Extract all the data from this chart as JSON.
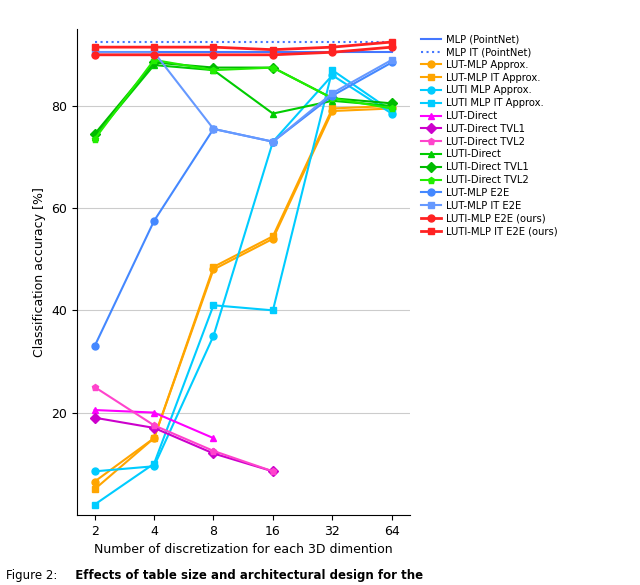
{
  "x_values": [
    2,
    4,
    8,
    16,
    32,
    64
  ],
  "x_label": "Number of discretization for each 3D dimention",
  "y_label": "Classification accuracy [%]",
  "ylim": [
    0,
    95
  ],
  "yticks": [
    20,
    40,
    60,
    80
  ],
  "series": {
    "MLP (PointNet)": {
      "color": "#4477ff",
      "linestyle": "-",
      "marker": null,
      "values": [
        90.5,
        90.5,
        90.5,
        90.5,
        90.5,
        90.5
      ],
      "linewidth": 1.5
    },
    "MLP IT (PointNet)": {
      "color": "#4477ff",
      "linestyle": ":",
      "marker": null,
      "values": [
        92.5,
        92.5,
        92.5,
        92.5,
        92.5,
        92.5
      ],
      "linewidth": 1.5
    },
    "LUT-MLP Approx.": {
      "color": "#ffa500",
      "linestyle": "-",
      "marker": "o",
      "values": [
        6.5,
        15.0,
        48.0,
        54.0,
        79.0,
        79.5
      ],
      "linewidth": 1.5
    },
    "LUT-MLP IT Approx.": {
      "color": "#ffa500",
      "linestyle": "-",
      "marker": "s",
      "values": [
        5.0,
        15.0,
        48.5,
        54.5,
        79.5,
        80.0
      ],
      "linewidth": 1.5
    },
    "LUTI MLP Approx.": {
      "color": "#00ccff",
      "linestyle": "-",
      "marker": "o",
      "values": [
        8.5,
        9.5,
        35.0,
        73.0,
        86.0,
        78.5
      ],
      "linewidth": 1.5
    },
    "LUTI MLP IT Approx.": {
      "color": "#00ccff",
      "linestyle": "-",
      "marker": "s",
      "values": [
        2.0,
        10.0,
        41.0,
        40.0,
        87.0,
        79.0
      ],
      "linewidth": 1.5
    },
    "LUT-Direct": {
      "color": "#ff00ff",
      "linestyle": "-",
      "marker": "^",
      "values": [
        20.5,
        20.0,
        15.0,
        null,
        null,
        null
      ],
      "linewidth": 1.5
    },
    "LUT-Direct TVL1": {
      "color": "#cc00cc",
      "linestyle": "-",
      "marker": "D",
      "values": [
        19.0,
        17.0,
        12.0,
        8.5,
        null,
        null
      ],
      "linewidth": 1.5
    },
    "LUT-Direct TVL2": {
      "color": "#ff44cc",
      "linestyle": "-",
      "marker": "p",
      "values": [
        25.0,
        17.5,
        12.5,
        8.5,
        null,
        null
      ],
      "linewidth": 1.5
    },
    "LUTI-Direct": {
      "color": "#00cc00",
      "linestyle": "-",
      "marker": "^",
      "values": [
        74.0,
        88.0,
        87.0,
        78.5,
        81.0,
        80.0
      ],
      "linewidth": 1.5
    },
    "LUTI-Direct TVL1": {
      "color": "#00bb00",
      "linestyle": "-",
      "marker": "D",
      "values": [
        74.5,
        88.5,
        87.5,
        87.5,
        81.5,
        80.5
      ],
      "linewidth": 1.5
    },
    "LUTI-Direct TVL2": {
      "color": "#22ee00",
      "linestyle": "-",
      "marker": "p",
      "values": [
        73.5,
        89.0,
        87.0,
        87.5,
        81.5,
        79.5
      ],
      "linewidth": 1.5
    },
    "LUT-MLP E2E": {
      "color": "#4488ff",
      "linestyle": "-",
      "marker": "o",
      "values": [
        33.0,
        57.5,
        75.5,
        73.0,
        82.0,
        88.5
      ],
      "linewidth": 1.5
    },
    "LUT-MLP IT E2E": {
      "color": "#6699ff",
      "linestyle": "-",
      "marker": "s",
      "values": [
        90.5,
        90.5,
        75.5,
        73.0,
        82.5,
        89.0
      ],
      "linewidth": 1.5
    },
    "LUTI-MLP E2E (ours)": {
      "color": "#ff2222",
      "linestyle": "-",
      "marker": "o",
      "values": [
        90.0,
        90.0,
        90.0,
        90.0,
        90.5,
        91.5
      ],
      "linewidth": 2.0
    },
    "LUTI-MLP IT E2E (ours)": {
      "color": "#ff2222",
      "linestyle": "-",
      "marker": "s",
      "values": [
        91.5,
        91.5,
        91.5,
        91.0,
        91.5,
        92.5
      ],
      "linewidth": 2.0
    }
  },
  "background_color": "#ffffff",
  "grid_color": "#cccccc",
  "fig_width": 6.4,
  "fig_height": 5.85,
  "caption_normal": "Figure 2:",
  "caption_bold": "  Effects of table size and architectural design for the"
}
